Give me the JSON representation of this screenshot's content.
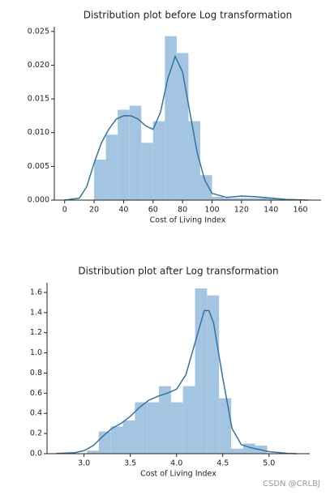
{
  "chart_data": [
    {
      "type": "histogram",
      "title": "Distribution plot before Log transformation",
      "x_label": "Cost of Living Index",
      "bins": [
        20,
        28,
        36,
        44,
        52,
        60,
        68,
        76,
        84,
        92,
        100,
        108,
        116,
        124,
        132,
        140,
        148
      ],
      "values": [
        0.006,
        0.0097,
        0.0134,
        0.014,
        0.0085,
        0.0117,
        0.0243,
        0.0218,
        0.0117,
        0.0037,
        0.0005,
        0.0003,
        0.0003,
        0.0003,
        0.0003,
        0.0002
      ],
      "color": "#a3c5e2",
      "kde": {
        "color": "#3274a1",
        "x": [
          0,
          10,
          15,
          20,
          25,
          30,
          35,
          40,
          45,
          50,
          55,
          60,
          65,
          70,
          75,
          80,
          85,
          90,
          95,
          100,
          110,
          120,
          130,
          140,
          150,
          165
        ],
        "values": [
          0,
          0.0003,
          0.002,
          0.0055,
          0.0085,
          0.0105,
          0.012,
          0.0125,
          0.0125,
          0.012,
          0.011,
          0.0105,
          0.013,
          0.018,
          0.0213,
          0.019,
          0.013,
          0.007,
          0.003,
          0.001,
          0.0004,
          0.0006,
          0.0005,
          0.0003,
          0.0001,
          0
        ]
      },
      "xlim": [
        -7,
        174
      ],
      "ylim": [
        0,
        0.0257
      ],
      "xticks": [
        0,
        20,
        40,
        60,
        80,
        100,
        120,
        140,
        160
      ],
      "yticks": [
        {
          "value": 0,
          "label": "0.000"
        },
        {
          "value": 0.005,
          "label": "0.005"
        },
        {
          "value": 0.01,
          "label": "0.010"
        },
        {
          "value": 0.015,
          "label": "0.015"
        },
        {
          "value": 0.02,
          "label": "0.020"
        },
        {
          "value": 0.025,
          "label": "0.025"
        }
      ]
    },
    {
      "type": "histogram",
      "title": "Distribution plot after Log transformation",
      "x_label": "Cost of Living Index",
      "bins": [
        3.03,
        3.16,
        3.29,
        3.42,
        3.55,
        3.68,
        3.81,
        3.94,
        4.07,
        4.2,
        4.33,
        4.46,
        4.59,
        4.72,
        4.85,
        4.98
      ],
      "values": [
        0.03,
        0.22,
        0.27,
        0.33,
        0.51,
        0.51,
        0.67,
        0.51,
        0.67,
        1.64,
        1.57,
        0.55,
        0.05,
        0.1,
        0.08
      ],
      "color": "#a3c5e2",
      "kde": {
        "color": "#3274a1",
        "x": [
          2.7,
          2.9,
          3.0,
          3.1,
          3.2,
          3.3,
          3.4,
          3.5,
          3.6,
          3.7,
          3.8,
          3.9,
          4.0,
          4.1,
          4.2,
          4.3,
          4.35,
          4.4,
          4.5,
          4.6,
          4.7,
          4.8,
          4.9,
          5.0,
          5.2,
          5.3
        ],
        "values": [
          0.002,
          0.01,
          0.03,
          0.08,
          0.17,
          0.25,
          0.3,
          0.37,
          0.46,
          0.53,
          0.57,
          0.6,
          0.64,
          0.78,
          1.1,
          1.42,
          1.42,
          1.3,
          0.75,
          0.25,
          0.09,
          0.06,
          0.04,
          0.02,
          0.003,
          0
        ]
      },
      "xlim": [
        2.6,
        5.44
      ],
      "ylim": [
        0,
        1.696
      ],
      "xticks": [
        {
          "value": 3,
          "label": "3.0"
        },
        {
          "value": 3.5,
          "label": "3.5"
        },
        {
          "value": 4,
          "label": "4.0"
        },
        {
          "value": 4.5,
          "label": "4.5"
        },
        {
          "value": 5,
          "label": "5.0"
        }
      ],
      "yticks": [
        {
          "value": 0,
          "label": "0.0"
        },
        {
          "value": 0.2,
          "label": "0.2"
        },
        {
          "value": 0.4,
          "label": "0.4"
        },
        {
          "value": 0.6,
          "label": "0.6"
        },
        {
          "value": 0.8,
          "label": "0.8"
        },
        {
          "value": 1,
          "label": "1.0"
        },
        {
          "value": 1.2,
          "label": "1.2"
        },
        {
          "value": 1.4,
          "label": "1.4"
        },
        {
          "value": 1.6,
          "label": "1.6"
        }
      ]
    }
  ],
  "watermark": "CSDN @CRLBJ"
}
